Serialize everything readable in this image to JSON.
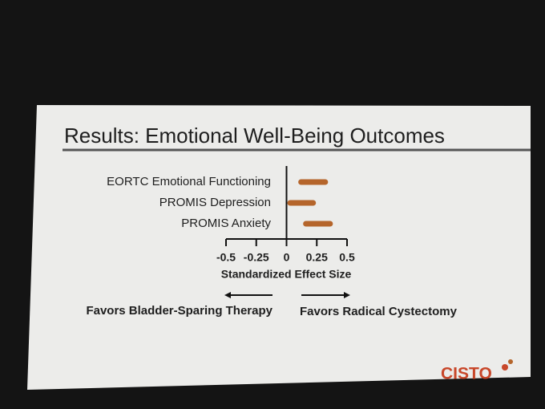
{
  "chart_data": {
    "type": "range",
    "title": "Results: Emotional Well-Being Outcomes",
    "categories": [
      "EORTC Emotional Functioning",
      "PROMIS Depression",
      "PROMIS Anxiety"
    ],
    "low": [
      0.12,
      0.03,
      0.16
    ],
    "high": [
      0.32,
      0.22,
      0.36
    ],
    "color": "#b5652b",
    "xlim": [
      -0.5,
      0.5
    ],
    "xticks": [
      -0.5,
      -0.25,
      0,
      0.25,
      0.5
    ],
    "xlabel": "Standardized Effect Size",
    "annotations": [
      "Favors Bladder-Sparing Therapy",
      "Favors Radical Cystectomy"
    ],
    "logo": "CISTO"
  }
}
